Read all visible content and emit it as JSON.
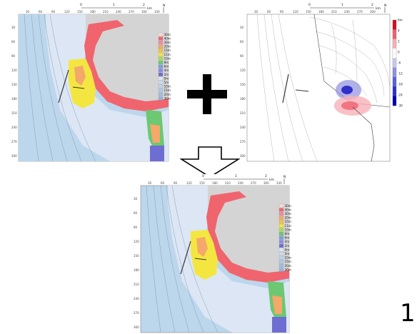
{
  "maps": {
    "scale_bar": {
      "ticks": [
        "0",
        "1",
        "2"
      ],
      "unit": "km"
    },
    "north_label": "N",
    "x_ticks": [
      "30",
      "60",
      "90",
      "120",
      "150",
      "180",
      "210",
      "240",
      "270",
      "300",
      "330",
      "360"
    ],
    "y_ticks": [
      "30",
      "60",
      "90",
      "120",
      "150",
      "180",
      "210",
      "240",
      "270",
      "300",
      "330",
      "360"
    ]
  },
  "elevation_legend": [
    {
      "label": "30m",
      "color": "#fadada"
    },
    {
      "label": "40m",
      "color": "#f0646e"
    },
    {
      "label": "30m",
      "color": "#f08ca0"
    },
    {
      "label": "20m",
      "color": "#f4a86a"
    },
    {
      "label": "15m",
      "color": "#f2c24a"
    },
    {
      "label": "11m",
      "color": "#f4e640"
    },
    {
      "label": "10m",
      "color": "#a8dc50"
    },
    {
      "label": "8m",
      "color": "#6cc872"
    },
    {
      "label": "6m",
      "color": "#78a0dc"
    },
    {
      "label": "4m",
      "color": "#8c8ce6"
    },
    {
      "label": "2m",
      "color": "#6e6ed2"
    },
    {
      "label": "0m",
      "color": "#dce6f4"
    },
    {
      "label": "5m",
      "color": "#cfdcee"
    },
    {
      "label": "10m",
      "color": "#bfd2ea"
    },
    {
      "label": "15m",
      "color": "#b0c8e6"
    },
    {
      "label": "20m",
      "color": "#a0bee2"
    },
    {
      "label": "30m",
      "color": "#90b4de"
    }
  ],
  "difference_legend": {
    "labels": [
      "6m",
      "4",
      "2",
      "0",
      "-6",
      "-12",
      "-18",
      "-24",
      "-30"
    ],
    "colors": [
      "#d01020",
      "#f06070",
      "#f8b0b8",
      "#ffffff",
      "#c8c8f0",
      "#9090e0",
      "#6060d8",
      "#3030c8",
      "#0000b0"
    ]
  },
  "colors": {
    "land": "#d4d4d4",
    "sea": "#bcd6ec",
    "contour": "#7a8ea4"
  },
  "figure_number": "1"
}
